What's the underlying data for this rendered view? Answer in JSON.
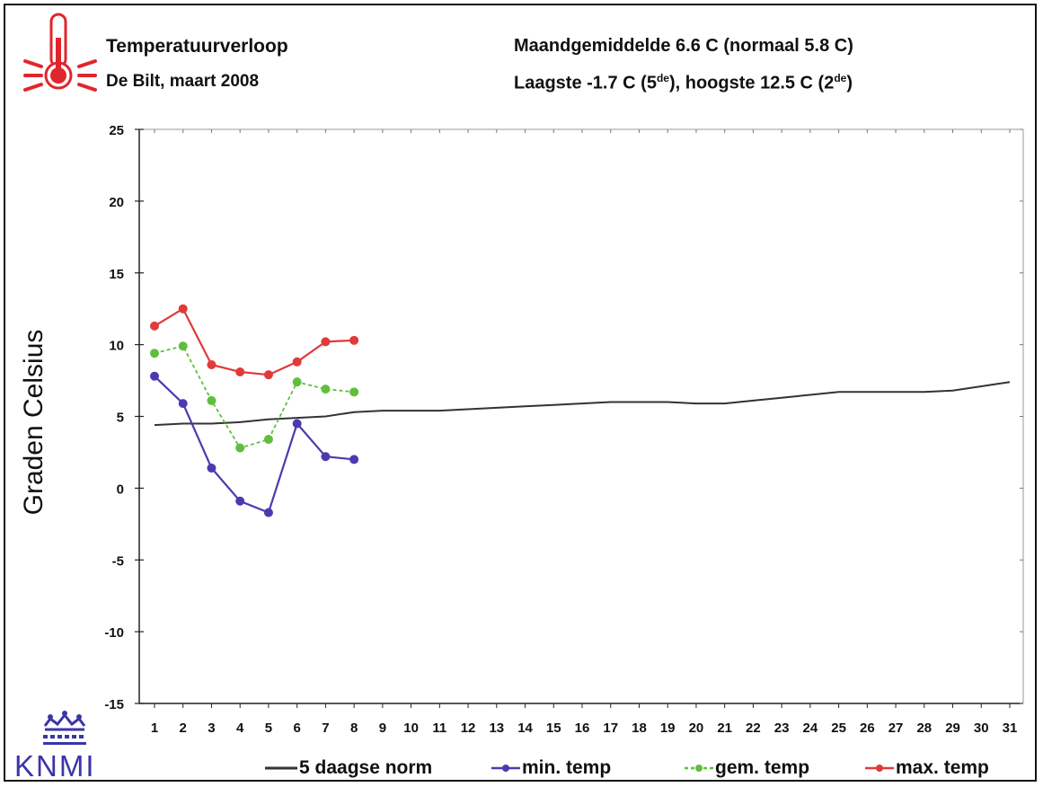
{
  "header": {
    "title": "Temperatuurverloop",
    "subtitle": "De Bilt, maart 2008",
    "stat_line1": "Maandgemiddelde 6.6  C (normaal 5.8  C)",
    "stat_line2_a": "Laagste -1.7  C (5",
    "stat_line2_sup1": "de",
    "stat_line2_b": "), hoogste 12.5  C (2",
    "stat_line2_sup2": "de",
    "stat_line2_c": ")"
  },
  "logo": {
    "text": "KNMI",
    "icon": "crown-icon"
  },
  "icons": {
    "thermometer": "thermometer-icon"
  },
  "colors": {
    "norm": "#333333",
    "min": "#4b3bb0",
    "gem": "#5fbf3c",
    "max": "#e03a3a",
    "thermo": "#e0262c"
  },
  "chart_data": {
    "type": "line",
    "ylabel": "Graden Celsius",
    "xlabel": "",
    "ylim": [
      -15,
      25
    ],
    "yticks": [
      -15,
      -10,
      -5,
      0,
      5,
      10,
      15,
      20,
      25
    ],
    "x": [
      1,
      2,
      3,
      4,
      5,
      6,
      7,
      8,
      9,
      10,
      11,
      12,
      13,
      14,
      15,
      16,
      17,
      18,
      19,
      20,
      21,
      22,
      23,
      24,
      25,
      26,
      27,
      28,
      29,
      30,
      31
    ],
    "grid": false,
    "legend": "bottom",
    "series": [
      {
        "name": "5 daagse norm",
        "key": "norm",
        "x": [
          1,
          2,
          3,
          4,
          5,
          6,
          7,
          8,
          9,
          10,
          11,
          12,
          13,
          14,
          15,
          16,
          17,
          18,
          19,
          20,
          21,
          22,
          23,
          24,
          25,
          26,
          27,
          28,
          29,
          30,
          31
        ],
        "values": [
          4.4,
          4.5,
          4.5,
          4.6,
          4.8,
          4.9,
          5.0,
          5.3,
          5.4,
          5.4,
          5.4,
          5.5,
          5.6,
          5.7,
          5.8,
          5.9,
          6.0,
          6.0,
          6.0,
          5.9,
          5.9,
          6.1,
          6.3,
          6.5,
          6.7,
          6.7,
          6.7,
          6.7,
          6.8,
          7.1,
          7.4
        ]
      },
      {
        "name": "min. temp",
        "key": "min",
        "x": [
          1,
          2,
          3,
          4,
          5,
          6,
          7,
          8
        ],
        "values": [
          7.8,
          5.9,
          1.4,
          -0.9,
          -1.7,
          4.5,
          2.2,
          2.0
        ]
      },
      {
        "name": "gem. temp",
        "key": "gem",
        "x": [
          1,
          2,
          3,
          4,
          5,
          6,
          7,
          8
        ],
        "values": [
          9.4,
          9.9,
          6.1,
          2.8,
          3.4,
          7.4,
          6.9,
          6.7
        ]
      },
      {
        "name": "max. temp",
        "key": "max",
        "x": [
          1,
          2,
          3,
          4,
          5,
          6,
          7,
          8
        ],
        "values": [
          11.3,
          12.5,
          8.6,
          8.1,
          7.9,
          8.8,
          10.2,
          10.3
        ]
      }
    ]
  }
}
